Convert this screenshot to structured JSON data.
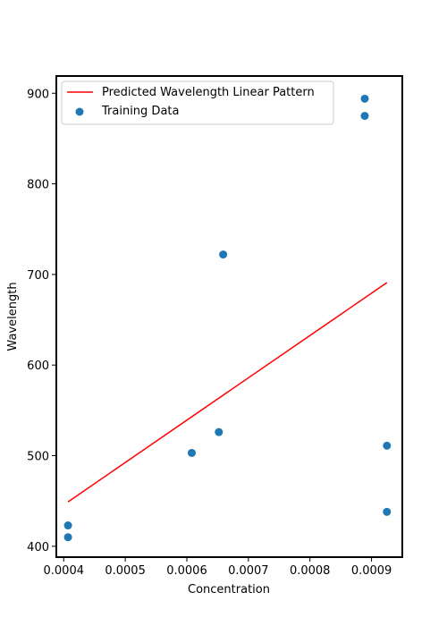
{
  "chart_data": {
    "type": "scatter",
    "title": "",
    "xlabel": "Concentration",
    "ylabel": "Wavelength",
    "xlim": [
      0.000388,
      0.00095
    ],
    "ylim": [
      388,
      919
    ],
    "xticks": [
      0.0004,
      0.0005,
      0.0006,
      0.0007,
      0.0008,
      0.0009
    ],
    "xtick_labels": [
      "0.0004",
      "0.0005",
      "0.0006",
      "0.0007",
      "0.0008",
      "0.0009"
    ],
    "yticks": [
      400,
      500,
      600,
      700,
      800,
      900
    ],
    "ytick_labels": [
      "400",
      "500",
      "600",
      "700",
      "800",
      "900"
    ],
    "grid": false,
    "legend_position": "top-left",
    "series": [
      {
        "name": "Predicted Wavelength Linear Pattern",
        "kind": "line",
        "color": "#ff0000",
        "x": [
          0.000407,
          0.000925
        ],
        "y": [
          449,
          691
        ]
      },
      {
        "name": "Training Data",
        "kind": "scatter",
        "color": "#1f77b4",
        "x": [
          0.000407,
          0.000407,
          0.000608,
          0.000652,
          0.000659,
          0.000889,
          0.000889,
          0.000925,
          0.000925
        ],
        "y": [
          423,
          410,
          503,
          526,
          722,
          894,
          875,
          511,
          438
        ]
      }
    ]
  }
}
